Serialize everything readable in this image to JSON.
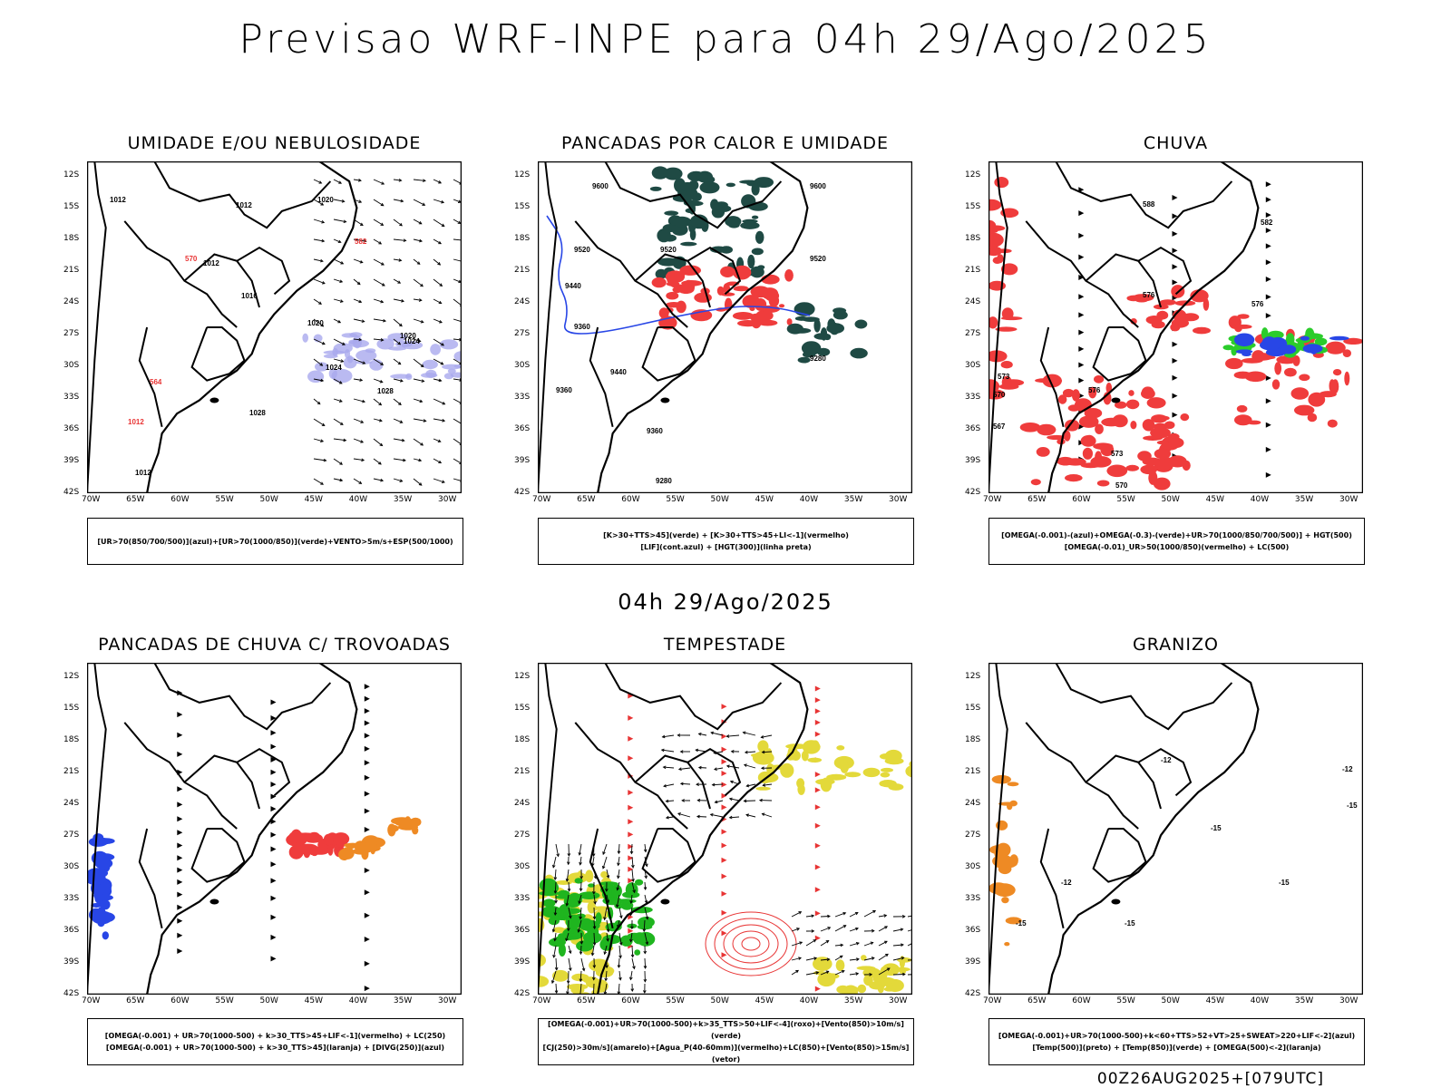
{
  "header": {
    "title": "Previsao WRF-INPE  para 04h 29/Ago/2025"
  },
  "middle": {
    "title": "04h 29/Ago/2025"
  },
  "footer": {
    "run": "00Z26AUG2025+[079UTC]"
  },
  "axes": {
    "lat_labels": [
      "12S",
      "15S",
      "18S",
      "21S",
      "24S",
      "27S",
      "30S",
      "33S",
      "36S",
      "39S",
      "42S"
    ],
    "lon_labels": [
      "70W",
      "65W",
      "60W",
      "55W",
      "50W",
      "45W",
      "40W",
      "35W",
      "30W"
    ]
  },
  "panels": [
    {
      "id": "umidade",
      "title": "UMIDADE E/OU NEBULOSIDADE",
      "legend": [
        "[UR>70(850/700/500)](azul)+[UR>70(1000/850)](verde)+VENTO>5m/s+ESP(500/1000)"
      ],
      "contour_labels": [
        "1012",
        "1012",
        "1012",
        "1016",
        "1020",
        "1020",
        "1020",
        "1024",
        "1024",
        "1028",
        "1028",
        "1012",
        "1012",
        "564",
        "570",
        "582"
      ]
    },
    {
      "id": "pancadas-calor",
      "title": "PANCADAS POR CALOR E UMIDADE",
      "legend": [
        "[K>30+TTS>45](verde) + [K>30+TTS>45+LI<-1](vermelho)",
        "[LIF](cont.azul) + [HGT(300)](linha preta)"
      ],
      "contour_labels": [
        "9600",
        "9600",
        "9520",
        "9520",
        "9520",
        "9440",
        "9440",
        "9360",
        "9360",
        "9280",
        "9280",
        "9360"
      ]
    },
    {
      "id": "chuva",
      "title": "CHUVA",
      "legend": [
        "[OMEGA(-0.001)-(azul)+OMEGA(-0.3)-(verde)+UR>70(1000/850/700/500)] + HGT(500)",
        "[OMEGA(-0.01)_UR>50(1000/850)(vermelho) + LC(500)"
      ],
      "contour_labels": [
        "588",
        "582",
        "576",
        "576",
        "576",
        "573",
        "570",
        "567",
        "573",
        "570"
      ]
    },
    {
      "id": "trovoadas",
      "title": "PANCADAS DE CHUVA C/ TROVOADAS",
      "legend": [
        "[OMEGA(-0.001) + UR>70(1000-500) + k>30_TTS>45+LIF<-1](vermelho) + LC(250)",
        "[OMEGA(-0.001) + UR>70(1000-500) + k>30_TTS>45](laranja) + [DIVG(250)](azul)"
      ],
      "contour_labels": []
    },
    {
      "id": "tempestade",
      "title": "TEMPESTADE",
      "legend": [
        "[OMEGA(-0.001)+UR>70(1000-500)+k>35_TTS>50+LIF<-4](roxo)+[Vento(850)>10m/s](verde)",
        "[CJ(250)>30m/s](amarelo)+[Agua_P(40-60mm)](vermelho)+LC(850)+[Vento(850)>15m/s](vetor)"
      ],
      "contour_labels": []
    },
    {
      "id": "granizo",
      "title": "GRANIZO",
      "legend": [
        "[OMEGA(-0.001)+UR>70(1000-500)+k<60+TTS>52+VT>25+SWEAT>220+LIF<-2](azul)",
        "[Temp(500)](preto) + [Temp(850)](verde) + [OMEGA(500)<-2](laranja)"
      ],
      "contour_labels": [
        "-12",
        "-12",
        "-12",
        "-15",
        "-15",
        "-15",
        "-15",
        "-15"
      ]
    }
  ]
}
